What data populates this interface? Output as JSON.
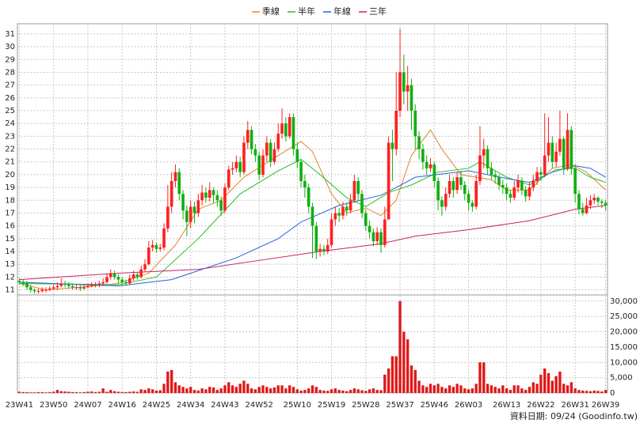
{
  "chart_data": {
    "type": "candlestick",
    "grid": true,
    "series": [
      {
        "name": "季線",
        "color": "#e8822a",
        "x": [
          0,
          7,
          16,
          26,
          34,
          41,
          47,
          53,
          59,
          68,
          74,
          77,
          82,
          86,
          91,
          95,
          99,
          103,
          108,
          111,
          116,
          124,
          128,
          134,
          140,
          145,
          149,
          154
        ],
        "values": [
          11.5,
          11.0,
          11.2,
          11.5,
          12.3,
          14.5,
          17.3,
          18.0,
          19.8,
          21.5,
          22.6,
          21.8,
          18.5,
          17.0,
          17.4,
          16.8,
          18.0,
          21.5,
          23.5,
          22.0,
          20.0,
          19.6,
          18.8,
          18.8,
          20.5,
          20.8,
          20.2,
          18.8
        ]
      },
      {
        "name": "半年",
        "color": "#22c022",
        "x": [
          0,
          26,
          36,
          47,
          58,
          68,
          74,
          79,
          86,
          91,
          97,
          103,
          110,
          118,
          121,
          128,
          134,
          141,
          146,
          150,
          154
        ],
        "values": [
          11.5,
          11.4,
          12.0,
          15.0,
          18.5,
          20.3,
          21.2,
          20.0,
          18.2,
          17.5,
          18.6,
          19.2,
          20.2,
          20.5,
          21.0,
          19.8,
          19.2,
          20.4,
          20.5,
          19.8,
          19.4
        ]
      },
      {
        "name": "年線",
        "color": "#2262e0",
        "x": [
          0,
          26,
          40,
          57,
          68,
          74,
          84,
          95,
          99,
          104,
          118,
          128,
          134,
          140,
          146,
          150,
          154
        ],
        "values": [
          11.6,
          11.3,
          11.8,
          13.5,
          15.0,
          16.3,
          17.6,
          18.4,
          19.0,
          19.8,
          20.3,
          19.7,
          19.4,
          20.2,
          20.7,
          20.5,
          19.8
        ]
      },
      {
        "name": "三年",
        "color": "#c8206a",
        "x": [
          0,
          26,
          47,
          63,
          79,
          95,
          104,
          118,
          134,
          146,
          154
        ],
        "values": [
          11.8,
          12.3,
          12.6,
          13.3,
          14.0,
          14.6,
          15.2,
          15.7,
          16.4,
          17.3,
          17.6
        ]
      }
    ],
    "candles": {
      "up_color": "#ff2020",
      "down_color": "#10b010",
      "open": [
        11.7,
        11.6,
        11.5,
        11.2,
        11.0,
        10.9,
        10.9,
        11.0,
        11.0,
        11.1,
        11.2,
        11.3,
        11.5,
        11.4,
        11.3,
        11.2,
        11.2,
        11.1,
        11.2,
        11.3,
        11.4,
        11.4,
        11.5,
        11.6,
        12.0,
        12.3,
        12.0,
        11.8,
        11.6,
        11.5,
        11.9,
        12.2,
        12.0,
        12.6,
        13.0,
        14.3,
        14.5,
        14.2,
        14.3,
        15.8,
        17.5,
        19.5,
        20.2,
        18.5,
        17.2,
        16.3,
        17.5,
        17.0,
        18.0,
        18.6,
        18.2,
        18.8,
        18.4,
        18.0,
        17.2,
        19.0,
        20.4,
        20.5,
        21.0,
        20.2,
        22.5,
        23.5,
        22.0,
        21.5,
        20.0,
        21.5,
        22.5,
        21.0,
        22.0,
        23.2,
        24.0,
        23.0,
        24.5,
        22.0,
        21.0,
        19.5,
        19.0,
        17.5,
        16.0,
        14.0,
        14.2,
        14.0,
        14.5,
        16.5,
        17.0,
        16.8,
        17.5,
        17.2,
        18.0,
        19.5,
        18.5,
        17.0,
        16.0,
        15.5,
        14.8,
        15.5,
        14.5,
        16.5,
        22.5,
        22.0,
        25.0,
        28.0,
        26.5,
        27.0,
        25.0,
        23.0,
        22.0,
        21.0,
        20.5,
        20.8,
        19.5,
        18.0,
        17.5,
        18.5,
        19.5,
        18.8,
        19.8,
        19.2,
        18.5,
        17.8,
        17.5,
        19.5,
        21.5,
        22.0,
        20.5,
        20.0,
        19.8,
        19.2,
        19.0,
        18.5,
        18.2,
        19.0,
        19.5,
        18.8,
        18.3,
        19.0,
        19.5,
        20.2,
        20.0,
        21.5,
        22.5,
        21.0,
        21.8,
        22.8,
        20.5,
        23.5,
        20.5,
        18.5,
        17.3,
        17.0,
        17.6,
        18.0,
        18.2,
        17.9,
        17.8
      ],
      "high": [
        11.9,
        11.8,
        11.7,
        11.4,
        11.1,
        11.1,
        11.2,
        11.2,
        11.3,
        11.4,
        11.6,
        11.9,
        11.7,
        11.6,
        11.5,
        11.4,
        11.4,
        11.4,
        11.5,
        11.6,
        11.6,
        11.7,
        11.9,
        12.3,
        12.6,
        12.5,
        12.2,
        12.0,
        11.8,
        12.2,
        12.5,
        12.4,
        12.9,
        13.4,
        14.8,
        14.9,
        14.7,
        14.6,
        16.2,
        19.2,
        20.2,
        20.8,
        20.5,
        18.8,
        17.6,
        18.0,
        17.9,
        18.5,
        19.2,
        19.0,
        19.4,
        19.0,
        18.8,
        18.3,
        19.3,
        20.7,
        21.0,
        21.5,
        21.4,
        23.0,
        24.2,
        23.8,
        22.4,
        21.8,
        22.0,
        23.0,
        22.8,
        22.5,
        24.0,
        25.2,
        24.5,
        24.8,
        24.8,
        22.5,
        21.2,
        20.0,
        19.3,
        17.8,
        16.3,
        14.6,
        14.5,
        15.0,
        17.0,
        17.5,
        17.4,
        17.9,
        17.8,
        18.5,
        20.0,
        19.8,
        18.8,
        17.3,
        16.4,
        15.8,
        15.9,
        15.8,
        17.5,
        23.0,
        23.5,
        28.0,
        31.4,
        29.4,
        28.5,
        27.5,
        25.5,
        23.4,
        22.4,
        21.5,
        21.3,
        21.0,
        19.8,
        18.3,
        19.0,
        20.0,
        19.8,
        20.2,
        20.3,
        19.5,
        18.8,
        18.0,
        20.0,
        23.8,
        22.8,
        22.3,
        21.0,
        20.3,
        20.0,
        19.6,
        19.3,
        18.8,
        19.5,
        20.0,
        19.8,
        19.1,
        19.4,
        20.0,
        20.6,
        20.6,
        24.8,
        24.5,
        23.0,
        22.5,
        25.0,
        23.0,
        24.8,
        23.8,
        20.8,
        18.8,
        17.8,
        18.2,
        18.4,
        18.5,
        18.3,
        18.1,
        18.0
      ],
      "low": [
        11.4,
        11.3,
        11.0,
        10.8,
        10.7,
        10.7,
        10.8,
        10.8,
        10.9,
        11.0,
        11.0,
        11.2,
        11.2,
        11.1,
        11.0,
        11.0,
        10.9,
        11.0,
        11.1,
        11.2,
        11.2,
        11.2,
        11.3,
        11.5,
        11.8,
        11.8,
        11.5,
        11.3,
        11.3,
        11.4,
        11.7,
        11.8,
        11.9,
        12.4,
        12.9,
        14.0,
        13.9,
        14.0,
        14.1,
        15.5,
        17.0,
        19.0,
        18.0,
        16.5,
        15.2,
        15.8,
        16.2,
        16.7,
        17.6,
        17.8,
        17.9,
        17.8,
        17.5,
        16.8,
        17.0,
        18.8,
        20.0,
        20.2,
        19.8,
        20.0,
        22.0,
        21.6,
        21.0,
        19.6,
        19.8,
        21.0,
        20.6,
        20.8,
        21.8,
        22.8,
        22.6,
        22.8,
        21.5,
        20.5,
        19.0,
        18.2,
        17.0,
        13.5,
        13.4,
        13.6,
        13.7,
        13.8,
        14.3,
        16.0,
        16.3,
        16.5,
        16.8,
        17.0,
        17.8,
        18.0,
        16.6,
        15.6,
        15.0,
        14.4,
        14.5,
        13.9,
        14.3,
        16.5,
        19.5,
        21.5,
        24.5,
        25.5,
        25.0,
        23.5,
        22.0,
        21.2,
        20.4,
        20.0,
        20.2,
        19.0,
        17.2,
        16.8,
        17.2,
        18.2,
        18.2,
        18.5,
        18.8,
        18.0,
        17.2,
        17.1,
        17.3,
        19.2,
        20.5,
        20.0,
        19.6,
        19.3,
        18.8,
        18.5,
        18.0,
        17.8,
        18.0,
        18.6,
        18.4,
        17.9,
        18.0,
        18.7,
        19.2,
        19.5,
        19.8,
        21.0,
        20.5,
        20.6,
        21.5,
        20.0,
        20.3,
        20.0,
        17.8,
        16.9,
        16.8,
        16.9,
        17.3,
        17.7,
        17.6,
        17.4,
        17.2
      ],
      "close": [
        11.6,
        11.5,
        11.2,
        11.0,
        10.9,
        10.9,
        11.0,
        11.0,
        11.1,
        11.2,
        11.3,
        11.5,
        11.4,
        11.3,
        11.2,
        11.2,
        11.1,
        11.2,
        11.3,
        11.4,
        11.4,
        11.5,
        11.6,
        12.0,
        12.3,
        12.0,
        11.8,
        11.6,
        11.5,
        11.9,
        12.2,
        12.0,
        12.6,
        13.0,
        14.3,
        14.5,
        14.2,
        14.3,
        15.8,
        17.5,
        19.5,
        20.2,
        18.5,
        17.2,
        16.3,
        17.5,
        17.0,
        18.0,
        18.6,
        18.2,
        18.8,
        18.4,
        18.0,
        17.2,
        19.0,
        20.4,
        20.5,
        21.0,
        20.2,
        22.5,
        23.5,
        22.0,
        21.5,
        20.0,
        21.5,
        22.5,
        21.0,
        22.0,
        23.2,
        24.0,
        23.0,
        24.5,
        22.0,
        21.0,
        19.5,
        19.0,
        17.5,
        16.0,
        14.0,
        14.2,
        14.0,
        14.5,
        16.5,
        17.0,
        16.8,
        17.5,
        17.2,
        18.0,
        19.5,
        18.5,
        17.0,
        16.0,
        15.5,
        14.8,
        15.5,
        14.5,
        16.5,
        22.5,
        22.0,
        25.0,
        28.0,
        26.5,
        27.0,
        25.0,
        23.0,
        22.0,
        21.0,
        20.5,
        20.8,
        19.5,
        18.0,
        17.5,
        18.5,
        19.5,
        18.8,
        19.8,
        19.2,
        18.5,
        17.8,
        17.5,
        19.5,
        21.5,
        22.0,
        20.5,
        20.0,
        19.8,
        19.2,
        19.0,
        18.5,
        18.2,
        19.0,
        19.5,
        18.8,
        18.3,
        19.0,
        19.5,
        20.2,
        20.0,
        21.5,
        22.5,
        21.0,
        21.8,
        22.8,
        20.5,
        23.5,
        20.5,
        18.5,
        17.3,
        17.0,
        17.6,
        18.0,
        18.2,
        17.9,
        17.8,
        17.6
      ]
    },
    "ylim": [
      10.6,
      31.8
    ],
    "yticks": [
      11,
      12,
      13,
      14,
      15,
      16,
      17,
      18,
      19,
      20,
      21,
      22,
      23,
      24,
      25,
      26,
      27,
      28,
      29,
      30,
      31
    ],
    "xticks": [
      {
        "value": 0,
        "label": "23W41"
      },
      {
        "value": 9,
        "label": "23W50"
      },
      {
        "value": 18,
        "label": "24W07"
      },
      {
        "value": 27,
        "label": "24W16"
      },
      {
        "value": 36,
        "label": "24W25"
      },
      {
        "value": 45,
        "label": "24W34"
      },
      {
        "value": 54,
        "label": "24W43"
      },
      {
        "value": 63,
        "label": "24W52"
      },
      {
        "value": 73,
        "label": "25W10"
      },
      {
        "value": 82,
        "label": "25W19"
      },
      {
        "value": 91,
        "label": "25W28"
      },
      {
        "value": 100,
        "label": "25W37"
      },
      {
        "value": 109,
        "label": "25W46"
      },
      {
        "value": 118,
        "label": "26W03"
      },
      {
        "value": 128,
        "label": "26W13"
      },
      {
        "value": 137,
        "label": "26W22"
      },
      {
        "value": 146,
        "label": "26W31"
      },
      {
        "value": 154,
        "label": "26W39"
      }
    ],
    "volume": {
      "color": "#e01818",
      "ylim": [
        0,
        32000
      ],
      "yticks": [
        0,
        {
          "value": 5000,
          "label": "5,000"
        },
        {
          "value": 10000,
          "label": "10,000"
        },
        {
          "value": 15000,
          "label": "15,000"
        },
        {
          "value": 20000,
          "label": "20,000"
        },
        {
          "value": 25000,
          "label": "25,000"
        },
        {
          "value": 30000,
          "label": "30,000"
        }
      ],
      "values": [
        400,
        300,
        300,
        200,
        200,
        300,
        300,
        200,
        300,
        400,
        1000,
        600,
        500,
        400,
        300,
        300,
        200,
        300,
        400,
        500,
        300,
        400,
        1500,
        400,
        1000,
        600,
        400,
        300,
        300,
        400,
        500,
        400,
        1200,
        1000,
        1500,
        1200,
        800,
        900,
        3000,
        7000,
        7500,
        3500,
        2500,
        2000,
        1500,
        2000,
        1000,
        800,
        1500,
        1200,
        2000,
        1800,
        1000,
        1500,
        2500,
        3500,
        2500,
        2000,
        3000,
        4000,
        3000,
        1500,
        1200,
        2000,
        2500,
        2000,
        1500,
        1800,
        2500,
        2500,
        1500,
        2500,
        2000,
        1200,
        800,
        1000,
        1500,
        2500,
        2000,
        1000,
        800,
        700,
        1200,
        1500,
        1000,
        800,
        600,
        1000,
        1500,
        1200,
        900,
        700,
        1200,
        1500,
        1000,
        900,
        6000,
        8000,
        12000,
        12000,
        30000,
        20000,
        17500,
        9000,
        7500,
        4000,
        2500,
        2000,
        3000,
        2500,
        3000,
        2000,
        1500,
        2500,
        2000,
        3000,
        2500,
        1500,
        1200,
        1500,
        3000,
        10000,
        10000,
        3000,
        2500,
        2000,
        1500,
        2500,
        1500,
        1000,
        2500,
        2500,
        1500,
        1000,
        2000,
        3500,
        3000,
        6000,
        8000,
        6500,
        4000,
        5500,
        7000,
        3000,
        2500,
        3500,
        1500,
        1000,
        800,
        700,
        600,
        800,
        700,
        500,
        1000
      ]
    },
    "source": "資料日期: 09/24 (Goodinfo.tw)"
  }
}
